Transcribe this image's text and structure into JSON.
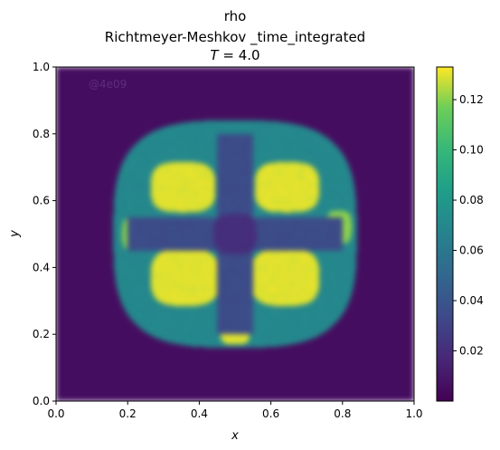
{
  "chart_data": {
    "type": "heatmap",
    "title_lines": [
      "rho",
      "Richtmeyer-Meshkov _time_integrated"
    ],
    "title_time_var": "T",
    "title_time_eq": " = 4.0",
    "xlabel": "x",
    "ylabel": "y",
    "xlim": [
      0.0,
      1.0
    ],
    "ylim": [
      0.0,
      1.0
    ],
    "xticks": [
      "0.0",
      "0.2",
      "0.4",
      "0.6",
      "0.8",
      "1.0"
    ],
    "yticks": [
      "0.0",
      "0.2",
      "0.4",
      "0.6",
      "0.8",
      "1.0"
    ],
    "colorbar": {
      "colormap": "viridis",
      "range": [
        0.0,
        0.133
      ],
      "ticks": [
        "0.02",
        "0.04",
        "0.06",
        "0.08",
        "0.10",
        "0.12"
      ]
    },
    "watermark": "@4e09",
    "background_value": 0.005,
    "features": [
      {
        "shape": "blob",
        "cx": 0.5,
        "cy": 0.5,
        "rx": 0.34,
        "ry": 0.34,
        "value": 0.07
      },
      {
        "shape": "blob",
        "cx": 0.355,
        "cy": 0.64,
        "rx": 0.09,
        "ry": 0.075,
        "value": 0.13
      },
      {
        "shape": "blob",
        "cx": 0.645,
        "cy": 0.64,
        "rx": 0.09,
        "ry": 0.075,
        "value": 0.13
      },
      {
        "shape": "blob",
        "cx": 0.36,
        "cy": 0.37,
        "rx": 0.095,
        "ry": 0.085,
        "value": 0.13
      },
      {
        "shape": "blob",
        "cx": 0.64,
        "cy": 0.37,
        "rx": 0.095,
        "ry": 0.085,
        "value": 0.13
      },
      {
        "shape": "blob",
        "cx": 0.5,
        "cy": 0.2,
        "rx": 0.04,
        "ry": 0.03,
        "value": 0.13
      },
      {
        "shape": "blob",
        "cx": 0.22,
        "cy": 0.5,
        "rx": 0.035,
        "ry": 0.05,
        "value": 0.12
      },
      {
        "shape": "blob",
        "cx": 0.79,
        "cy": 0.52,
        "rx": 0.035,
        "ry": 0.05,
        "value": 0.12
      },
      {
        "shape": "cross",
        "cx": 0.5,
        "cy": 0.5,
        "half_width": 0.05,
        "half_length": 0.3,
        "value": 0.035
      },
      {
        "shape": "blob",
        "cx": 0.5,
        "cy": 0.5,
        "rx": 0.06,
        "ry": 0.06,
        "value": 0.02
      }
    ]
  }
}
